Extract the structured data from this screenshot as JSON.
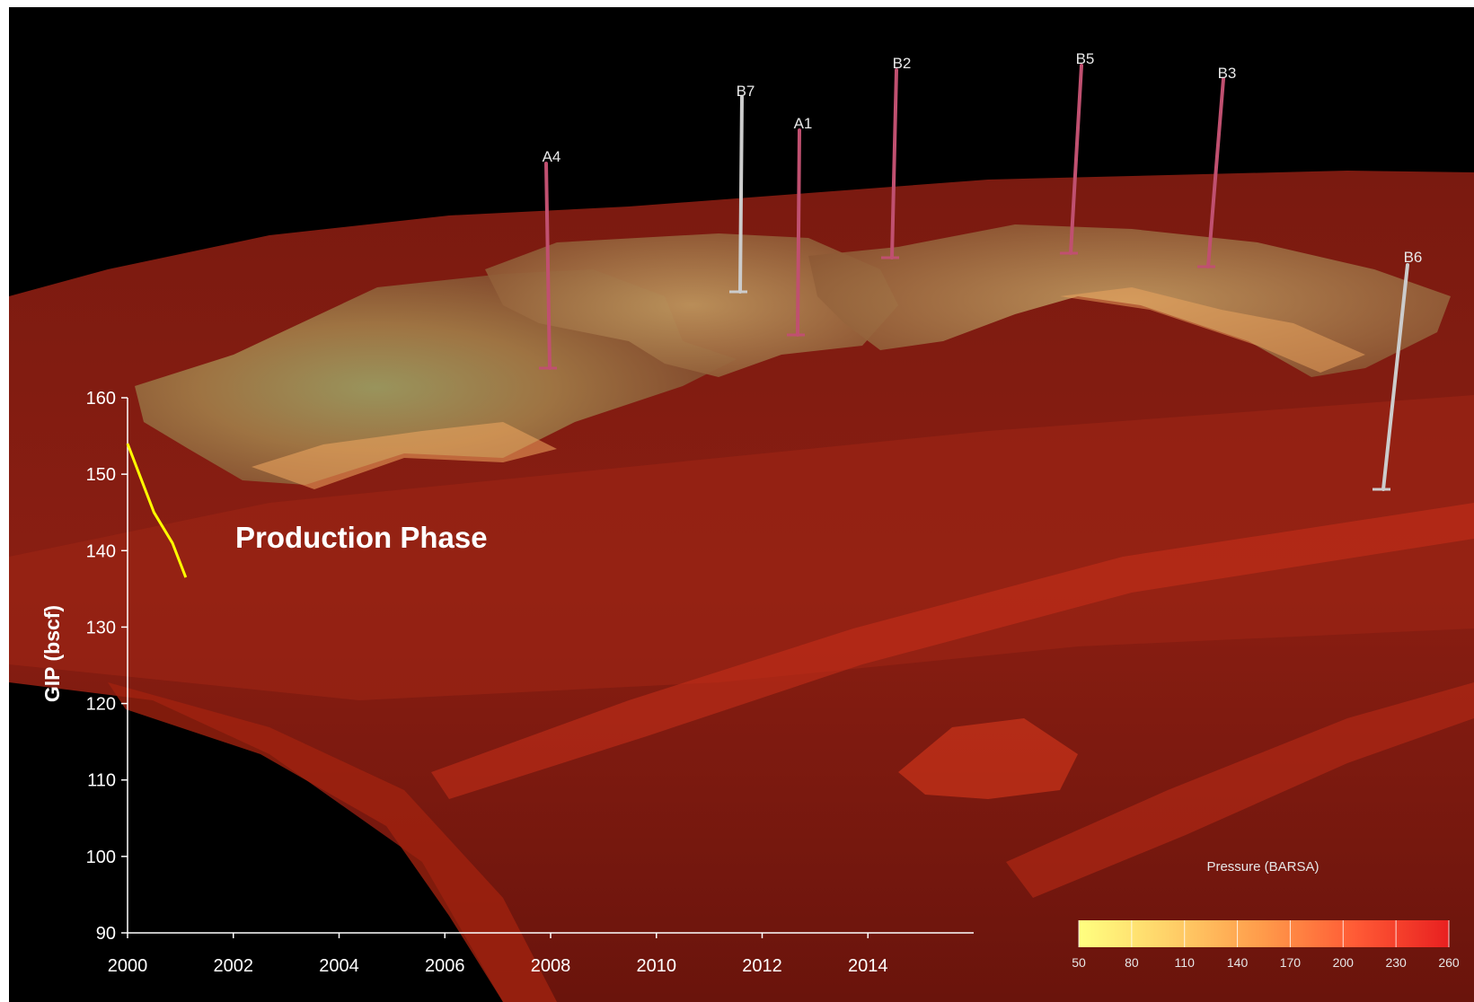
{
  "chart_data": {
    "type": "line",
    "annotation": "Production Phase",
    "ylabel": "GIP (bscf)",
    "xlabel": "",
    "xlim": [
      2000,
      2016
    ],
    "ylim": [
      90,
      160
    ],
    "x_ticks": [
      "2000",
      "2002",
      "2004",
      "2006",
      "2008",
      "2010",
      "2012",
      "2014"
    ],
    "y_ticks": [
      "90",
      "100",
      "110",
      "120",
      "130",
      "140",
      "150",
      "160"
    ],
    "grid": false,
    "series": [
      {
        "color": "#ffff00",
        "x": [
          2000.0,
          2000.5,
          2000.85,
          2001.1
        ],
        "y": [
          154.0,
          145.0,
          141.0,
          136.5
        ]
      }
    ]
  },
  "scene": {
    "wells": [
      {
        "name": "A4",
        "color": "#c05070"
      },
      {
        "name": "B7",
        "color": "#cccccc"
      },
      {
        "name": "A1",
        "color": "#c05070"
      },
      {
        "name": "B2",
        "color": "#c05070"
      },
      {
        "name": "B5",
        "color": "#c05070"
      },
      {
        "name": "B3",
        "color": "#c05070"
      },
      {
        "name": "B6",
        "color": "#cccccc"
      }
    ]
  },
  "colorbar": {
    "title": "Pressure (BARSA)",
    "ticks": [
      "50",
      "80",
      "110",
      "140",
      "170",
      "200",
      "230",
      "260"
    ],
    "colors": [
      "#ffff80",
      "#ffe070",
      "#ffc060",
      "#ff9a4a",
      "#ff7040",
      "#ff4a30",
      "#f03020"
    ]
  }
}
